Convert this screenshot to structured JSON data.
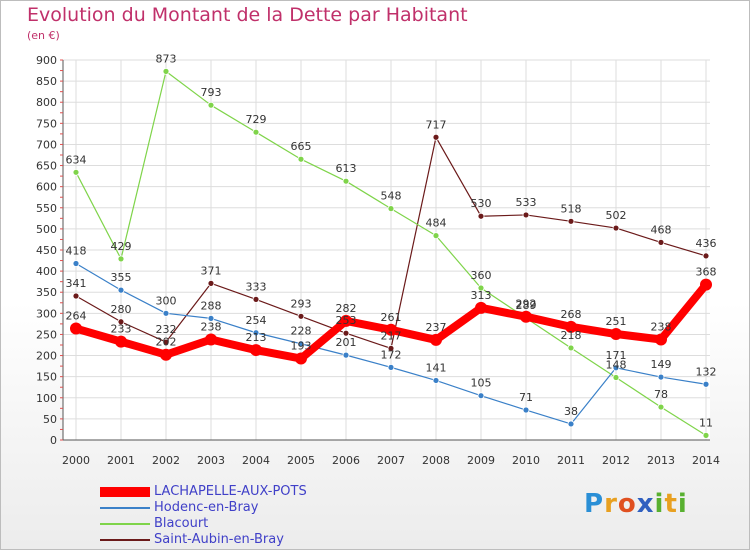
{
  "title": "Evolution du Montant de la Dette par Habitant",
  "unit": "(en €)",
  "logo": {
    "text": "Proxiti",
    "letters": [
      "P",
      "r",
      "o",
      "x",
      "i",
      "t",
      "i"
    ],
    "colors": [
      "#2a8fd6",
      "#e8a020",
      "#e05020",
      "#3060c0",
      "#58b030",
      "#e8a020",
      "#58b030"
    ]
  },
  "chart_data": {
    "type": "line",
    "title": "Evolution du Montant de la Dette par Habitant",
    "ylabel": "(en €)",
    "xlabel": "",
    "ylim": [
      0,
      900
    ],
    "yticks": [
      0,
      50,
      100,
      150,
      200,
      250,
      300,
      350,
      400,
      450,
      500,
      550,
      600,
      650,
      700,
      750,
      800,
      850,
      900
    ],
    "grid": true,
    "legend_position": "bottom-left",
    "x": [
      "2000",
      "2001",
      "2002",
      "2003",
      "2004",
      "2005",
      "2006",
      "2007",
      "2008",
      "2009",
      "2010",
      "2011",
      "2012",
      "2013",
      "2014"
    ],
    "series": [
      {
        "name": "Saint-Aubin-en-Bray",
        "color": "#6b1a1a",
        "values": [
          341,
          280,
          232,
          371,
          333,
          293,
          253,
          217,
          717,
          530,
          533,
          518,
          502,
          468,
          436
        ]
      },
      {
        "name": "Blacourt",
        "color": "#7fd44a",
        "values": [
          634,
          429,
          873,
          793,
          729,
          665,
          613,
          548,
          484,
          360,
          289,
          218,
          148,
          78,
          11
        ]
      },
      {
        "name": "Hodenc-en-Bray",
        "color": "#3a80c8",
        "values": [
          418,
          355,
          300,
          288,
          254,
          228,
          201,
          172,
          141,
          105,
          71,
          38,
          171,
          149,
          132
        ]
      },
      {
        "name": "LACHAPELLE-AUX-POTS",
        "color": "#ff0000",
        "values": [
          264,
          233,
          202,
          238,
          213,
          193,
          282,
          261,
          237,
          313,
          292,
          268,
          251,
          238,
          368
        ]
      }
    ],
    "labels": {
      "Saint-Aubin-en-Bray": [
        "341",
        "280",
        "232",
        "371",
        "333",
        "293",
        "253",
        "217",
        "717",
        "530",
        "533",
        "518",
        "502",
        "468",
        "436"
      ],
      "Blacourt": [
        "634",
        "429",
        "873",
        "793",
        "729",
        "665",
        "613",
        "548",
        "484",
        "360",
        "289",
        "218",
        "148",
        "78",
        "11"
      ],
      "Hodenc-en-Bray": [
        "418",
        "355",
        "300",
        "288",
        "254",
        "228",
        "201",
        "172",
        "141",
        "105",
        "71",
        "38",
        "171",
        "149",
        "132"
      ],
      "LACHAPELLE-AUX-POTS": [
        "264",
        "233",
        "202",
        "238",
        "213",
        "193",
        "282",
        "261",
        "237",
        "313",
        "292",
        "268",
        "251",
        "238",
        "368"
      ]
    },
    "legend": [
      "LACHAPELLE-AUX-POTS",
      "Hodenc-en-Bray",
      "Blacourt",
      "Saint-Aubin-en-Bray"
    ]
  }
}
